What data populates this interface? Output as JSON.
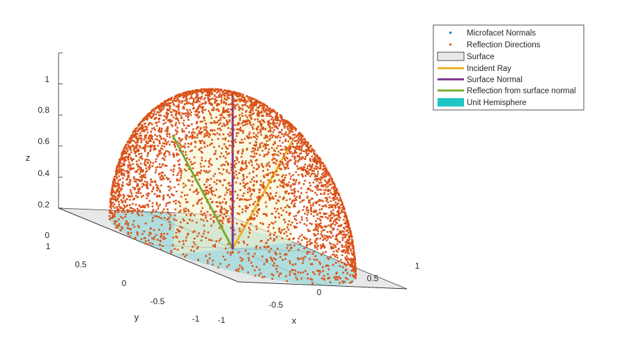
{
  "chart_data": {
    "type": "scatter",
    "projection": "3d",
    "title": "",
    "xlabel": "x",
    "ylabel": "y",
    "zlabel": "z",
    "xlim": [
      -1,
      1
    ],
    "ylim": [
      -1,
      1
    ],
    "zlim": [
      0,
      1
    ],
    "x_ticks": [
      "-1",
      "-0.5",
      "0",
      "0.5",
      "1"
    ],
    "y_ticks": [
      "-1",
      "-0.5",
      "0",
      "0.5",
      "1"
    ],
    "z_ticks": [
      "0",
      "0.2",
      "0.4",
      "0.6",
      "0.8",
      "1"
    ],
    "grid": false,
    "legend_position": "top-right",
    "legend": [
      {
        "label": "Microfacet Normals",
        "kind": "marker",
        "color": "#0072BD"
      },
      {
        "label": "Reflection Directions",
        "kind": "marker",
        "color": "#D95319"
      },
      {
        "label": "Surface",
        "kind": "patch",
        "color": "#E8E8E8"
      },
      {
        "label": "Incident Ray",
        "kind": "line",
        "color": "#EDB120"
      },
      {
        "label": "Surface Normal",
        "kind": "line",
        "color": "#7E2F8E"
      },
      {
        "label": "Reflection from surface normal",
        "kind": "line",
        "color": "#77AC30"
      },
      {
        "label": "Unit Hemisphere",
        "kind": "patch",
        "color": "#1FC5C5"
      }
    ],
    "surface": {
      "x": [
        -1,
        1
      ],
      "y": [
        -1,
        1
      ],
      "z": 0,
      "color": "#E8E8E8"
    },
    "hemisphere": {
      "radius": 1,
      "color": "#1FC5C5"
    },
    "incident_ray": {
      "from": [
        0,
        0,
        0
      ],
      "to": [
        0.71,
        0,
        0.71
      ],
      "color": "#EDB120"
    },
    "surface_normal": {
      "from": [
        0,
        0,
        0
      ],
      "to": [
        0,
        0,
        1
      ],
      "color": "#7E2F8E"
    },
    "reflection_from_normal": {
      "from": [
        0,
        0,
        0
      ],
      "to": [
        -0.71,
        0,
        0.71
      ],
      "color": "#77AC30"
    },
    "reflection_directions": {
      "distribution": "random points on unit hemisphere",
      "count": 4200,
      "color": "#D95319"
    }
  }
}
